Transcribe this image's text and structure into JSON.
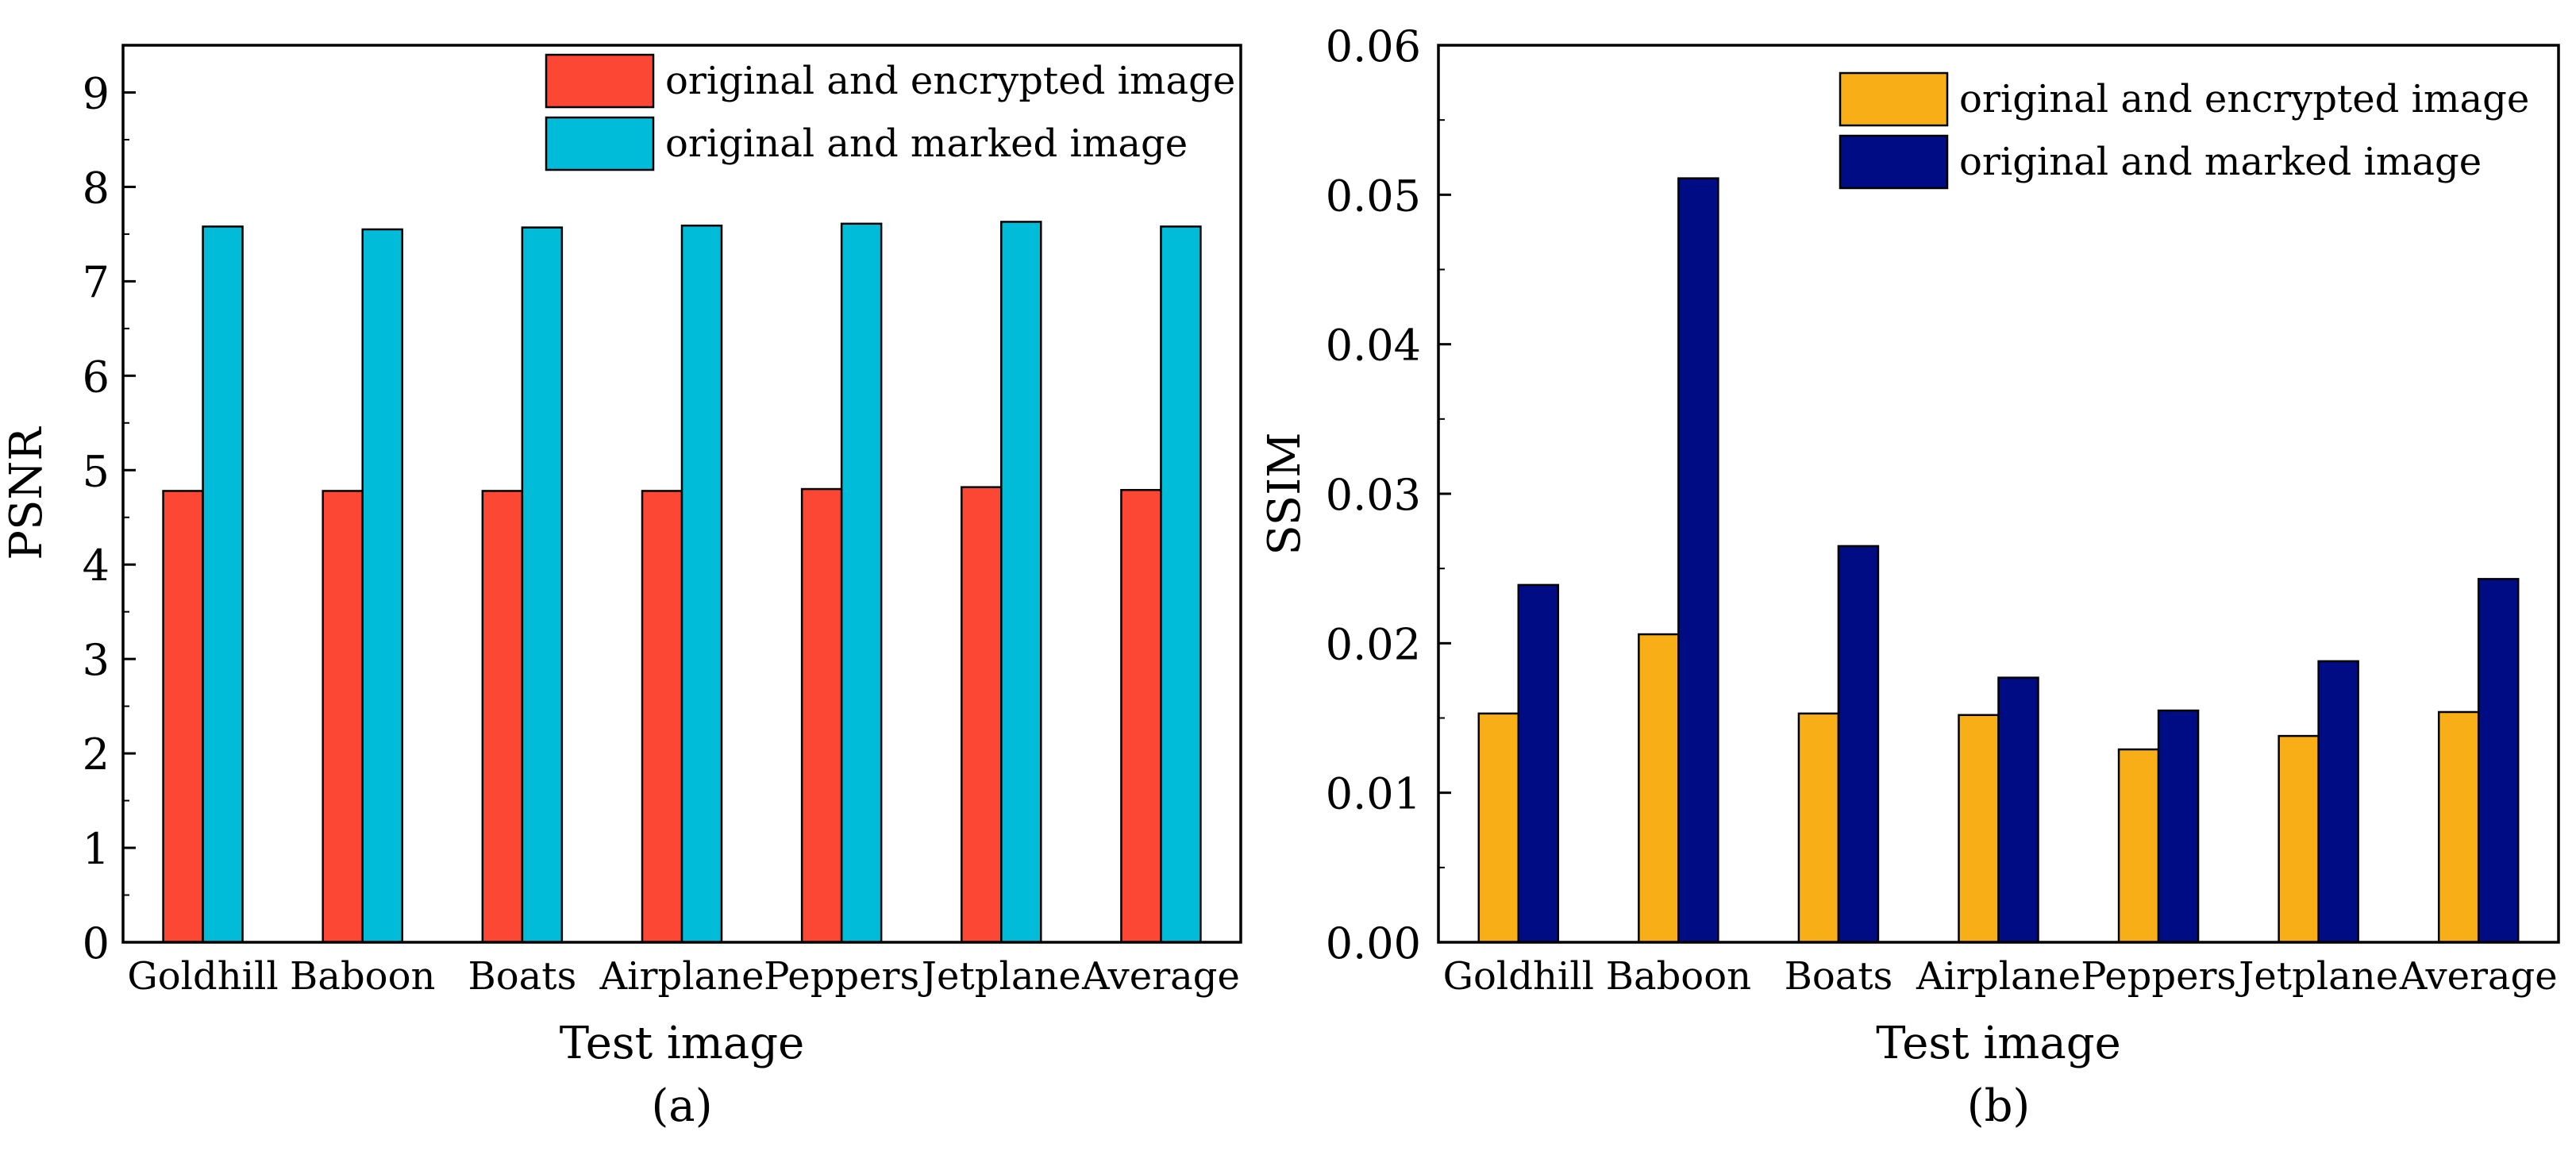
{
  "chart_data": [
    {
      "type": "bar",
      "title": "",
      "caption": "(a)",
      "xlabel": "Test image",
      "ylabel": "PSNR",
      "ylim": [
        0,
        9.5
      ],
      "yticks": [
        "0",
        "1",
        "2",
        "3",
        "4",
        "5",
        "6",
        "7",
        "8",
        "9"
      ],
      "grid": false,
      "legend_position": "top-right",
      "categories": [
        "Goldhill",
        "Baboon",
        "Boats",
        "Airplane",
        "Peppers",
        "Jetplane",
        "Average"
      ],
      "series": [
        {
          "name": "original and encrypted image",
          "color": "#fc4734",
          "values": [
            4.78,
            4.78,
            4.78,
            4.78,
            4.8,
            4.82,
            4.79
          ]
        },
        {
          "name": "original and marked image",
          "color": "#00bcd8",
          "values": [
            7.58,
            7.55,
            7.57,
            7.59,
            7.61,
            7.63,
            7.58
          ]
        }
      ]
    },
    {
      "type": "bar",
      "title": "",
      "caption": "(b)",
      "xlabel": "Test image",
      "ylabel": "SSIM",
      "ylim": [
        0,
        0.06
      ],
      "yticks": [
        "0.00",
        "0.01",
        "0.02",
        "0.03",
        "0.04",
        "0.05",
        "0.06"
      ],
      "grid": false,
      "legend_position": "top-right",
      "categories": [
        "Goldhill",
        "Baboon",
        "Boats",
        "Airplane",
        "Peppers",
        "Jetplane",
        "Average"
      ],
      "series": [
        {
          "name": "original and encrypted image",
          "color": "#f8ae17",
          "values": [
            0.0153,
            0.0206,
            0.0153,
            0.0152,
            0.0129,
            0.0138,
            0.0154
          ]
        },
        {
          "name": "original and marked image",
          "color": "#000c83",
          "values": [
            0.0239,
            0.0511,
            0.0265,
            0.0177,
            0.0155,
            0.0188,
            0.0243
          ]
        }
      ]
    }
  ]
}
